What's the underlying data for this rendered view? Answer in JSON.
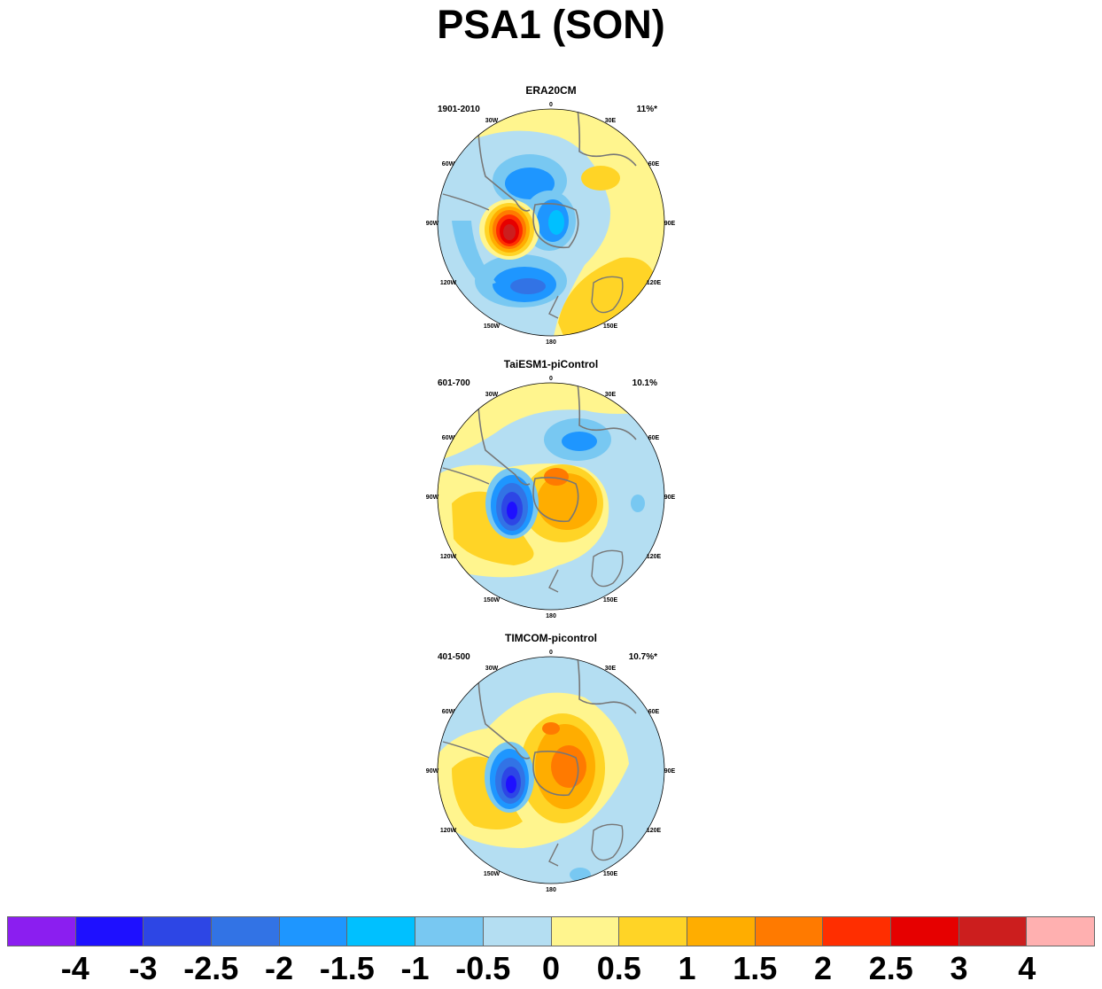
{
  "title": "PSA1 (SON)",
  "panels": [
    {
      "name": "ERA20CM",
      "period": "1901-2010",
      "variance": "11%*"
    },
    {
      "name": "TaiESM1-piControl",
      "period": "601-700",
      "variance": "10.1%"
    },
    {
      "name": "TIMCOM-picontrol",
      "period": "401-500",
      "variance": "10.7%*"
    }
  ],
  "longitude_labels": [
    "0",
    "30E",
    "60E",
    "90E",
    "120E",
    "150E",
    "180",
    "150W",
    "120W",
    "90W",
    "60W",
    "30W"
  ],
  "colorbar": {
    "colors": [
      "#8b1ef0",
      "#1e10ff",
      "#2d46e5",
      "#3273e5",
      "#1e96ff",
      "#00c0ff",
      "#78c8f2",
      "#b4def2",
      "#fff58e",
      "#ffd426",
      "#ffad00",
      "#ff7a00",
      "#ff2e00",
      "#e60000",
      "#cc1e1e",
      "#ffb0b0"
    ],
    "labels": [
      "-4",
      "-3",
      "-2.5",
      "-2",
      "-1.5",
      "-1",
      "-0.5",
      "0",
      "0.5",
      "1",
      "1.5",
      "2",
      "2.5",
      "3",
      "4"
    ]
  }
}
